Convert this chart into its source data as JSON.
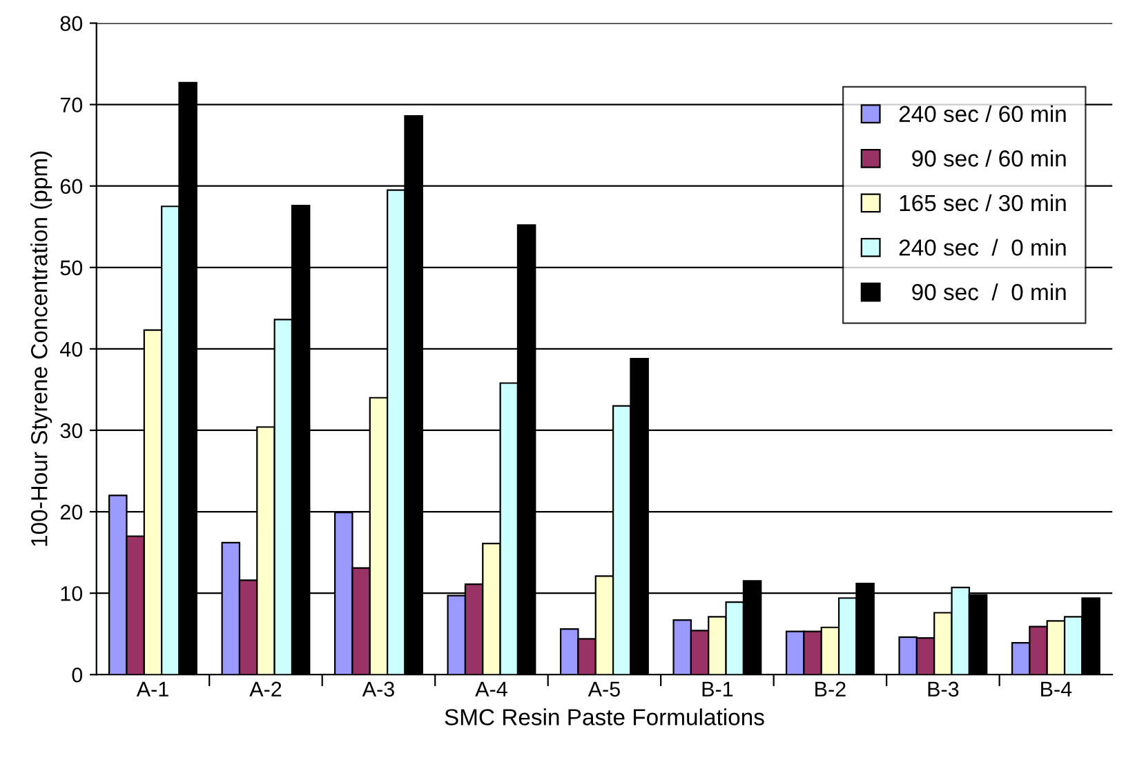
{
  "chart_data": {
    "type": "bar",
    "xlabel": "SMC Resin Paste Formulations",
    "ylabel": "100-Hour Styrene Concentration (ppm)",
    "categories": [
      "A-1",
      "A-2",
      "A-3",
      "A-4",
      "A-5",
      "B-1",
      "B-2",
      "B-3",
      "B-4"
    ],
    "series": [
      {
        "name": "240 sec / 60 min",
        "color": "#9999ff",
        "values": [
          22,
          16.2,
          19.9,
          9.7,
          5.6,
          6.7,
          5.3,
          4.6,
          3.9
        ]
      },
      {
        "name": "  90 sec / 60 min",
        "color": "#993366",
        "values": [
          17,
          11.6,
          13.1,
          11.1,
          4.4,
          5.4,
          5.3,
          4.5,
          5.9
        ]
      },
      {
        "name": "165 sec / 30 min",
        "color": "#ffffcc",
        "values": [
          42.3,
          30.4,
          34,
          16.1,
          12.1,
          7.1,
          5.8,
          7.6,
          6.6
        ]
      },
      {
        "name": "240 sec  /  0 min",
        "color": "#ccffff",
        "values": [
          57.5,
          43.6,
          59.5,
          35.8,
          33,
          8.9,
          9.4,
          10.7,
          7.1
        ]
      },
      {
        "name": "  90 sec  /  0 min",
        "color": "#000000",
        "values": [
          72.7,
          57.6,
          68.6,
          55.2,
          38.8,
          11.5,
          11.2,
          9.8,
          9.4
        ]
      }
    ],
    "ylim": [
      0,
      80
    ],
    "yticks": [
      0,
      10,
      20,
      30,
      40,
      50,
      60,
      70,
      80
    ],
    "grid": "y",
    "legend": "top right"
  }
}
